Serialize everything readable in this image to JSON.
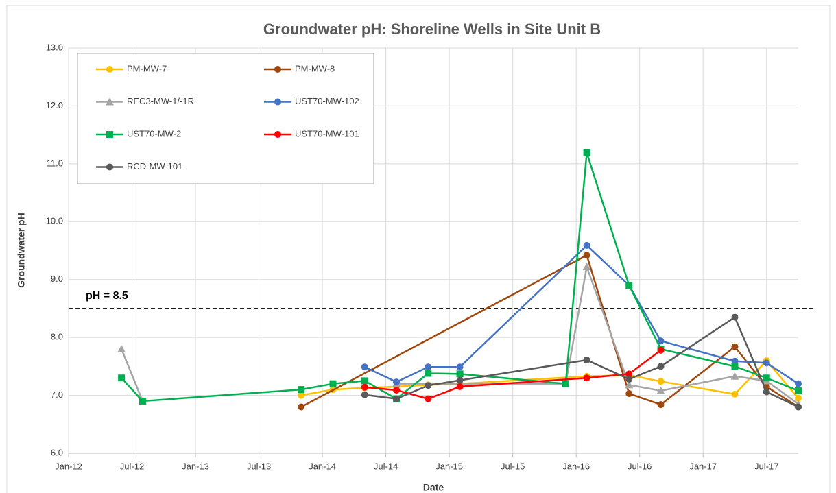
{
  "chart_data": {
    "type": "line",
    "title": "Groundwater pH: Shoreline Wells in Site Unit B",
    "x_label": "Date",
    "y_label": "Groundwater pH",
    "annotation": "pH = 8.5",
    "threshold": 8.5,
    "xlim": [
      "2012-01",
      "2017-10"
    ],
    "xticks": [
      {
        "value": "2012-01",
        "label": "Jan-12"
      },
      {
        "value": "2012-07",
        "label": "Jul-12"
      },
      {
        "value": "2013-01",
        "label": "Jan-13"
      },
      {
        "value": "2013-07",
        "label": "Jul-13"
      },
      {
        "value": "2014-01",
        "label": "Jan-14"
      },
      {
        "value": "2014-07",
        "label": "Jul-14"
      },
      {
        "value": "2015-01",
        "label": "Jan-15"
      },
      {
        "value": "2015-07",
        "label": "Jul-15"
      },
      {
        "value": "2016-01",
        "label": "Jan-16"
      },
      {
        "value": "2016-07",
        "label": "Jul-16"
      },
      {
        "value": "2017-01",
        "label": "Jan-17"
      },
      {
        "value": "2017-07",
        "label": "Jul-17"
      }
    ],
    "ylim": [
      6,
      13
    ],
    "yticks": [
      {
        "value": 6,
        "label": "6.0"
      },
      {
        "value": 7,
        "label": "7.0"
      },
      {
        "value": 8,
        "label": "8.0"
      },
      {
        "value": 9,
        "label": "9.0"
      },
      {
        "value": 10,
        "label": "10.0"
      },
      {
        "value": 11,
        "label": "11.0"
      },
      {
        "value": 12,
        "label": "12.0"
      },
      {
        "value": 13,
        "label": "13.0"
      }
    ],
    "grid": true,
    "series": [
      {
        "name": "PM-MW-7",
        "color": "#ffc000",
        "marker": "circle",
        "x": [
          "2013-11",
          "2014-02",
          "2014-05",
          "2014-08",
          "2014-11",
          "2015-02",
          "2016-02",
          "2016-06",
          "2016-09",
          "2017-04",
          "2017-07",
          "2017-10"
        ],
        "values": [
          7.0,
          7.1,
          7.13,
          7.15,
          7.18,
          7.2,
          7.33,
          7.35,
          7.24,
          7.02,
          7.6,
          6.95
        ]
      },
      {
        "name": "PM-MW-8",
        "color": "#9e480e",
        "marker": "circle",
        "x": [
          "2013-11",
          "2016-02",
          "2016-06",
          "2016-09",
          "2017-04",
          "2017-07",
          "2017-10"
        ],
        "values": [
          6.8,
          9.42,
          7.03,
          6.84,
          7.84,
          7.15,
          6.8
        ]
      },
      {
        "name": "REC3-MW-1/-1R",
        "color": "#a5a5a5",
        "marker": "triangle",
        "x": [
          "2012-06",
          "2012-08",
          null,
          "2014-08",
          "2015-12",
          "2016-02",
          "2016-06",
          "2016-09",
          "2017-04",
          "2017-07",
          "2017-10"
        ],
        "values": [
          7.8,
          6.9,
          null,
          7.2,
          7.2,
          9.22,
          7.18,
          7.08,
          7.33,
          7.25,
          6.85
        ]
      },
      {
        "name": "UST70-MW-102",
        "color": "#4472c4",
        "marker": "circle",
        "x": [
          "2014-05",
          "2014-08",
          "2014-11",
          "2015-02",
          "2016-02",
          "2016-06",
          "2016-09",
          "2017-04",
          "2017-07",
          "2017-10"
        ],
        "values": [
          7.49,
          7.23,
          7.49,
          7.49,
          9.59,
          8.9,
          7.94,
          7.59,
          7.56,
          7.2
        ]
      },
      {
        "name": "UST70-MW-2",
        "color": "#00b050",
        "marker": "square",
        "x": [
          "2012-06",
          "2012-08",
          "2013-11",
          "2014-02",
          "2014-05",
          "2014-08",
          "2014-11",
          "2015-02",
          "2015-12",
          "2016-02",
          "2016-06",
          "2016-09",
          "2017-04",
          "2017-07",
          "2017-10"
        ],
        "values": [
          7.3,
          6.9,
          7.1,
          7.2,
          7.25,
          6.94,
          7.38,
          7.37,
          7.2,
          11.19,
          8.9,
          7.8,
          7.5,
          7.3,
          7.08
        ]
      },
      {
        "name": "UST70-MW-101",
        "color": "#ff0000",
        "marker": "circle",
        "x": [
          "2014-05",
          "2014-08",
          "2014-11",
          "2015-02",
          "2016-02",
          "2016-06",
          "2016-09"
        ],
        "values": [
          7.14,
          7.09,
          6.94,
          7.15,
          7.3,
          7.37,
          7.78
        ]
      },
      {
        "name": "RCD-MW-101",
        "color": "#595959",
        "marker": "circle",
        "x": [
          "2014-05",
          "2014-08",
          "2014-11",
          "2015-02",
          "2016-02",
          "2016-06",
          "2016-09",
          "2017-04",
          "2017-07",
          "2017-10"
        ],
        "values": [
          7.01,
          6.94,
          7.17,
          7.26,
          7.61,
          7.28,
          7.5,
          8.35,
          7.06,
          6.8
        ]
      }
    ]
  }
}
